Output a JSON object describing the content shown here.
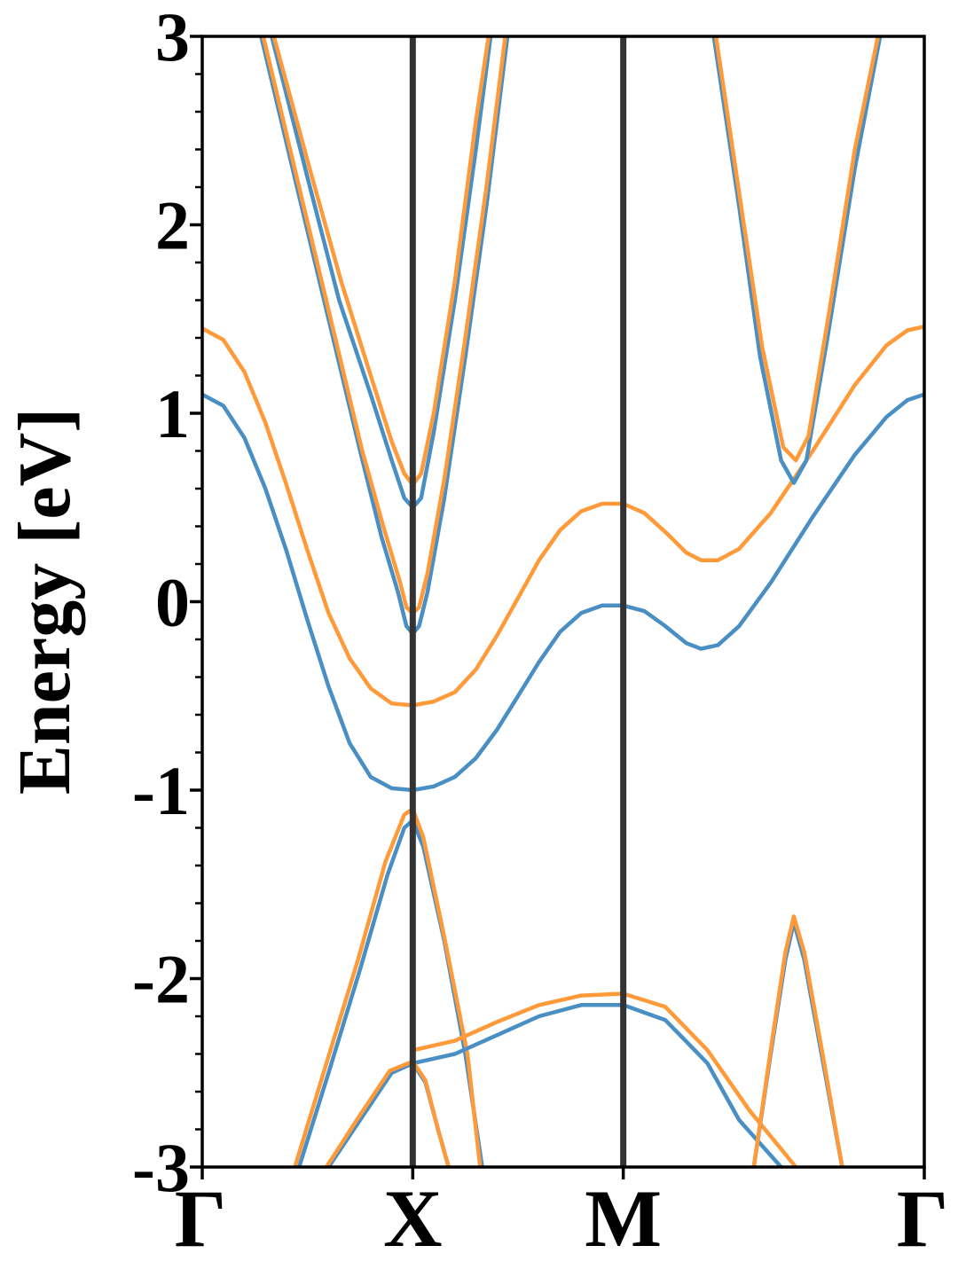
{
  "chart_data": {
    "type": "line",
    "title": "",
    "xlabel": "",
    "ylabel": "Energy [eV]",
    "ylim": [
      -3,
      3
    ],
    "yticks": [
      "3",
      "2",
      "1",
      "0",
      "-1",
      "-2",
      "-3"
    ],
    "ytick_values": [
      3,
      2,
      1,
      0,
      -1,
      -2,
      -3
    ],
    "kpath_labels": [
      "Γ",
      "X",
      "M",
      "Γ"
    ],
    "kpath_positions": [
      0,
      1,
      2,
      3.43
    ],
    "xlim": [
      0,
      3.43
    ],
    "grid": false,
    "colors": {
      "blue": "#4a8fc4",
      "orange": "#ff9a3a",
      "kline": "#333333"
    },
    "series": [
      {
        "color": "blue",
        "points": [
          [
            0,
            1.1
          ],
          [
            0.1,
            1.04
          ],
          [
            0.2,
            0.87
          ],
          [
            0.3,
            0.6
          ],
          [
            0.4,
            0.27
          ],
          [
            0.5,
            -0.1
          ],
          [
            0.6,
            -0.45
          ],
          [
            0.7,
            -0.75
          ],
          [
            0.8,
            -0.93
          ],
          [
            0.9,
            -0.99
          ],
          [
            1.0,
            -1.0
          ],
          [
            1.1,
            -0.98
          ],
          [
            1.2,
            -0.93
          ],
          [
            1.3,
            -0.83
          ],
          [
            1.4,
            -0.68
          ],
          [
            1.5,
            -0.5
          ],
          [
            1.6,
            -0.32
          ],
          [
            1.7,
            -0.16
          ],
          [
            1.8,
            -0.06
          ],
          [
            1.9,
            -0.02
          ],
          [
            2.0,
            -0.02
          ],
          [
            2.1,
            -0.05
          ],
          [
            2.2,
            -0.13
          ],
          [
            2.3,
            -0.22
          ],
          [
            2.37,
            -0.25
          ],
          [
            2.45,
            -0.23
          ],
          [
            2.55,
            -0.13
          ],
          [
            2.7,
            0.1
          ],
          [
            2.9,
            0.45
          ],
          [
            3.1,
            0.78
          ],
          [
            3.25,
            0.98
          ],
          [
            3.35,
            1.07
          ],
          [
            3.43,
            1.1
          ]
        ]
      },
      {
        "color": "orange",
        "points": [
          [
            0,
            1.45
          ],
          [
            0.1,
            1.39
          ],
          [
            0.2,
            1.22
          ],
          [
            0.3,
            0.95
          ],
          [
            0.4,
            0.62
          ],
          [
            0.5,
            0.27
          ],
          [
            0.6,
            -0.06
          ],
          [
            0.7,
            -0.3
          ],
          [
            0.8,
            -0.46
          ],
          [
            0.9,
            -0.54
          ],
          [
            1.0,
            -0.55
          ],
          [
            1.1,
            -0.53
          ],
          [
            1.2,
            -0.48
          ],
          [
            1.3,
            -0.36
          ],
          [
            1.4,
            -0.18
          ],
          [
            1.5,
            0.02
          ],
          [
            1.6,
            0.22
          ],
          [
            1.7,
            0.38
          ],
          [
            1.8,
            0.48
          ],
          [
            1.9,
            0.52
          ],
          [
            2.0,
            0.52
          ],
          [
            2.1,
            0.47
          ],
          [
            2.2,
            0.37
          ],
          [
            2.3,
            0.26
          ],
          [
            2.37,
            0.22
          ],
          [
            2.45,
            0.22
          ],
          [
            2.55,
            0.28
          ],
          [
            2.7,
            0.47
          ],
          [
            2.9,
            0.8
          ],
          [
            3.1,
            1.15
          ],
          [
            3.25,
            1.36
          ],
          [
            3.35,
            1.44
          ],
          [
            3.43,
            1.46
          ]
        ]
      },
      {
        "color": "blue",
        "points": [
          [
            0.28,
            3.0
          ],
          [
            0.45,
            2.2
          ],
          [
            0.6,
            1.5
          ],
          [
            0.75,
            0.8
          ],
          [
            0.85,
            0.35
          ],
          [
            0.93,
            0.05
          ],
          [
            0.97,
            -0.13
          ],
          [
            1.0,
            -0.17
          ],
          [
            1.03,
            -0.13
          ],
          [
            1.07,
            0.05
          ],
          [
            1.15,
            0.55
          ],
          [
            1.25,
            1.3
          ],
          [
            1.35,
            2.1
          ],
          [
            1.45,
            3.0
          ]
        ]
      },
      {
        "color": "orange",
        "points": [
          [
            0.29,
            3.0
          ],
          [
            0.46,
            2.2
          ],
          [
            0.61,
            1.5
          ],
          [
            0.76,
            0.8
          ],
          [
            0.86,
            0.4
          ],
          [
            0.94,
            0.1
          ],
          [
            0.97,
            -0.03
          ],
          [
            1.0,
            -0.06
          ],
          [
            1.03,
            -0.03
          ],
          [
            1.07,
            0.15
          ],
          [
            1.15,
            0.65
          ],
          [
            1.25,
            1.4
          ],
          [
            1.35,
            2.2
          ],
          [
            1.44,
            3.0
          ]
        ]
      },
      {
        "color": "blue",
        "points": [
          [
            0.33,
            3.0
          ],
          [
            0.5,
            2.25
          ],
          [
            0.65,
            1.6
          ],
          [
            0.8,
            1.1
          ],
          [
            0.9,
            0.75
          ],
          [
            0.96,
            0.55
          ],
          [
            1.0,
            0.5
          ],
          [
            1.04,
            0.55
          ],
          [
            1.1,
            0.9
          ],
          [
            1.2,
            1.6
          ],
          [
            1.3,
            2.4
          ],
          [
            1.37,
            3.0
          ]
        ]
      },
      {
        "color": "orange",
        "points": [
          [
            0.34,
            3.0
          ],
          [
            0.51,
            2.3
          ],
          [
            0.66,
            1.7
          ],
          [
            0.8,
            1.2
          ],
          [
            0.9,
            0.85
          ],
          [
            0.96,
            0.68
          ],
          [
            1.0,
            0.62
          ],
          [
            1.04,
            0.68
          ],
          [
            1.1,
            1.0
          ],
          [
            1.2,
            1.7
          ],
          [
            1.3,
            2.55
          ],
          [
            1.36,
            3.0
          ]
        ]
      },
      {
        "color": "blue",
        "points": [
          [
            2.43,
            3.0
          ],
          [
            2.55,
            2.1
          ],
          [
            2.65,
            1.3
          ],
          [
            2.75,
            0.75
          ],
          [
            2.81,
            0.63
          ],
          [
            2.87,
            0.75
          ],
          [
            2.97,
            1.4
          ],
          [
            3.1,
            2.3
          ],
          [
            3.22,
            3.0
          ]
        ]
      },
      {
        "color": "orange",
        "points": [
          [
            2.44,
            3.0
          ],
          [
            2.56,
            2.1
          ],
          [
            2.66,
            1.35
          ],
          [
            2.76,
            0.82
          ],
          [
            2.82,
            0.75
          ],
          [
            2.88,
            0.88
          ],
          [
            2.98,
            1.55
          ],
          [
            3.1,
            2.4
          ],
          [
            3.21,
            3.0
          ]
        ]
      },
      {
        "color": "blue",
        "points": [
          [
            0.46,
            -3.0
          ],
          [
            0.6,
            -2.5
          ],
          [
            0.75,
            -1.95
          ],
          [
            0.88,
            -1.45
          ],
          [
            0.96,
            -1.2
          ],
          [
            1.0,
            -1.16
          ],
          [
            1.05,
            -1.3
          ],
          [
            1.15,
            -1.8
          ],
          [
            1.25,
            -2.4
          ],
          [
            1.33,
            -3.0
          ]
        ]
      },
      {
        "color": "orange",
        "points": [
          [
            0.44,
            -3.0
          ],
          [
            0.59,
            -2.45
          ],
          [
            0.74,
            -1.9
          ],
          [
            0.87,
            -1.38
          ],
          [
            0.96,
            -1.13
          ],
          [
            1.0,
            -1.1
          ],
          [
            1.05,
            -1.25
          ],
          [
            1.15,
            -1.78
          ],
          [
            1.26,
            -2.4
          ],
          [
            1.32,
            -3.0
          ]
        ]
      },
      {
        "color": "blue",
        "points": [
          [
            1.0,
            -2.45
          ],
          [
            1.2,
            -2.4
          ],
          [
            1.4,
            -2.3
          ],
          [
            1.6,
            -2.2
          ],
          [
            1.8,
            -2.14
          ],
          [
            2.0,
            -2.14
          ],
          [
            2.2,
            -2.22
          ],
          [
            2.4,
            -2.45
          ],
          [
            2.55,
            -2.75
          ],
          [
            2.75,
            -3.0
          ]
        ]
      },
      {
        "color": "orange",
        "points": [
          [
            1.0,
            -2.38
          ],
          [
            1.2,
            -2.33
          ],
          [
            1.4,
            -2.23
          ],
          [
            1.6,
            -2.14
          ],
          [
            1.8,
            -2.09
          ],
          [
            2.0,
            -2.08
          ],
          [
            2.2,
            -2.15
          ],
          [
            2.4,
            -2.38
          ],
          [
            2.6,
            -2.7
          ],
          [
            2.82,
            -3.0
          ]
        ]
      },
      {
        "color": "blue",
        "points": [
          [
            0.6,
            -3.0
          ],
          [
            0.75,
            -2.75
          ],
          [
            0.9,
            -2.5
          ],
          [
            1.0,
            -2.45
          ],
          [
            1.06,
            -2.55
          ],
          [
            1.12,
            -2.8
          ],
          [
            1.17,
            -3.0
          ]
        ]
      },
      {
        "color": "orange",
        "points": [
          [
            0.59,
            -3.0
          ],
          [
            0.74,
            -2.74
          ],
          [
            0.89,
            -2.49
          ],
          [
            1.0,
            -2.44
          ],
          [
            1.06,
            -2.54
          ],
          [
            1.12,
            -2.8
          ],
          [
            1.17,
            -3.0
          ]
        ]
      },
      {
        "color": "blue",
        "points": [
          [
            2.62,
            -3.0
          ],
          [
            2.7,
            -2.4
          ],
          [
            2.77,
            -1.9
          ],
          [
            2.81,
            -1.7
          ],
          [
            2.86,
            -1.9
          ],
          [
            2.95,
            -2.45
          ],
          [
            3.04,
            -3.0
          ]
        ]
      },
      {
        "color": "orange",
        "points": [
          [
            2.62,
            -3.0
          ],
          [
            2.7,
            -2.38
          ],
          [
            2.77,
            -1.86
          ],
          [
            2.81,
            -1.67
          ],
          [
            2.86,
            -1.86
          ],
          [
            2.95,
            -2.42
          ],
          [
            3.04,
            -3.0
          ]
        ]
      }
    ]
  }
}
